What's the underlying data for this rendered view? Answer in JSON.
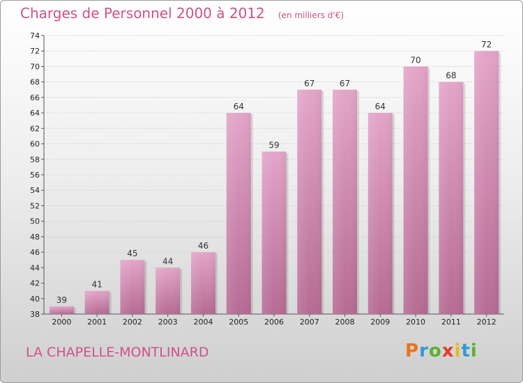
{
  "chart_data": {
    "type": "bar",
    "title": "Charges de Personnel 2000 à 2012",
    "subtitle": "(en milliers d'€)",
    "categories": [
      "2000",
      "2001",
      "2002",
      "2003",
      "2004",
      "2005",
      "2006",
      "2007",
      "2008",
      "2009",
      "2010",
      "2011",
      "2012"
    ],
    "values": [
      39,
      41,
      45,
      44,
      46,
      64,
      59,
      67,
      67,
      64,
      70,
      68,
      72
    ],
    "ylim": [
      38,
      74
    ],
    "yticks": [
      38,
      40,
      42,
      44,
      46,
      48,
      50,
      52,
      54,
      56,
      58,
      60,
      62,
      64,
      66,
      68,
      70,
      72,
      74
    ],
    "grid": true,
    "bar_color": "#d27faa"
  },
  "location": "LA CHAPELLE-MONTLINARD",
  "brand": {
    "letters": [
      "P",
      "r",
      "o",
      "x",
      "i",
      "t",
      "i"
    ],
    "colors": [
      "#e8731e",
      "#2f9ad6",
      "#5cb030",
      "#e43a2c",
      "#e8b81e",
      "#2f9ad6",
      "#5cb030"
    ]
  }
}
